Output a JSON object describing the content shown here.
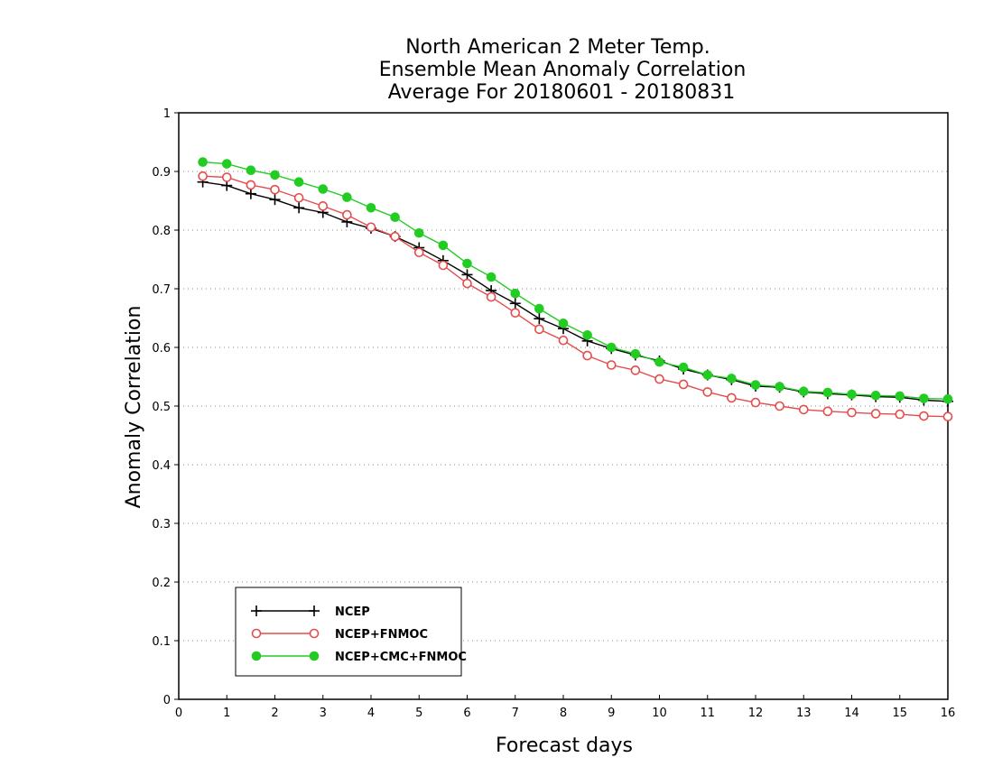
{
  "chart_data": {
    "type": "line",
    "title": [
      "North American 2 Meter Temp.",
      "Ensemble Mean Anomaly Correlation",
      "Average For 20180601 - 20180831"
    ],
    "xlabel": "Forecast days",
    "ylabel": "Anomaly Correlation",
    "xlim": [
      0,
      16
    ],
    "ylim": [
      0,
      1
    ],
    "xticks": [
      "0",
      "1",
      "2",
      "3",
      "4",
      "5",
      "6",
      "7",
      "8",
      "9",
      "10",
      "11",
      "12",
      "13",
      "14",
      "15",
      "16"
    ],
    "yticks": [
      "0",
      "0.1",
      "0.2",
      "0.3",
      "0.4",
      "0.5",
      "0.6",
      "0.7",
      "0.8",
      "0.9",
      "1"
    ],
    "grid": true,
    "legend_position": "bottom-left",
    "x": [
      0.5,
      1,
      1.5,
      2,
      2.5,
      3,
      3.5,
      4,
      4.5,
      5,
      5.5,
      6,
      6.5,
      7,
      7.5,
      8,
      8.5,
      9,
      9.5,
      10,
      10.5,
      11,
      11.5,
      12,
      12.5,
      13,
      13.5,
      14,
      14.5,
      15,
      15.5,
      16
    ],
    "series": [
      {
        "name": "NCEP",
        "color": "#000000",
        "marker": "plus",
        "values": [
          0.882,
          0.876,
          0.862,
          0.852,
          0.838,
          0.83,
          0.814,
          0.803,
          0.789,
          0.77,
          0.748,
          0.724,
          0.697,
          0.675,
          0.649,
          0.632,
          0.611,
          0.598,
          0.587,
          0.577,
          0.563,
          0.553,
          0.545,
          0.534,
          0.532,
          0.524,
          0.521,
          0.519,
          0.516,
          0.515,
          0.51,
          0.508
        ]
      },
      {
        "name": "NCEP+FNMOC",
        "color": "#e74c4c",
        "marker": "open-circle",
        "values": [
          0.892,
          0.89,
          0.877,
          0.869,
          0.855,
          0.841,
          0.826,
          0.805,
          0.789,
          0.762,
          0.74,
          0.709,
          0.686,
          0.659,
          0.631,
          0.612,
          0.586,
          0.57,
          0.561,
          0.546,
          0.537,
          0.524,
          0.514,
          0.506,
          0.5,
          0.494,
          0.491,
          0.489,
          0.487,
          0.486,
          0.483,
          0.482
        ]
      },
      {
        "name": "NCEP+CMC+FNMOC",
        "color": "#22cc22",
        "marker": "filled-circle",
        "values": [
          0.916,
          0.913,
          0.902,
          0.894,
          0.882,
          0.87,
          0.856,
          0.838,
          0.822,
          0.795,
          0.774,
          0.743,
          0.72,
          0.692,
          0.666,
          0.641,
          0.621,
          0.6,
          0.589,
          0.575,
          0.566,
          0.553,
          0.547,
          0.536,
          0.533,
          0.525,
          0.523,
          0.52,
          0.518,
          0.517,
          0.513,
          0.512
        ]
      }
    ]
  }
}
